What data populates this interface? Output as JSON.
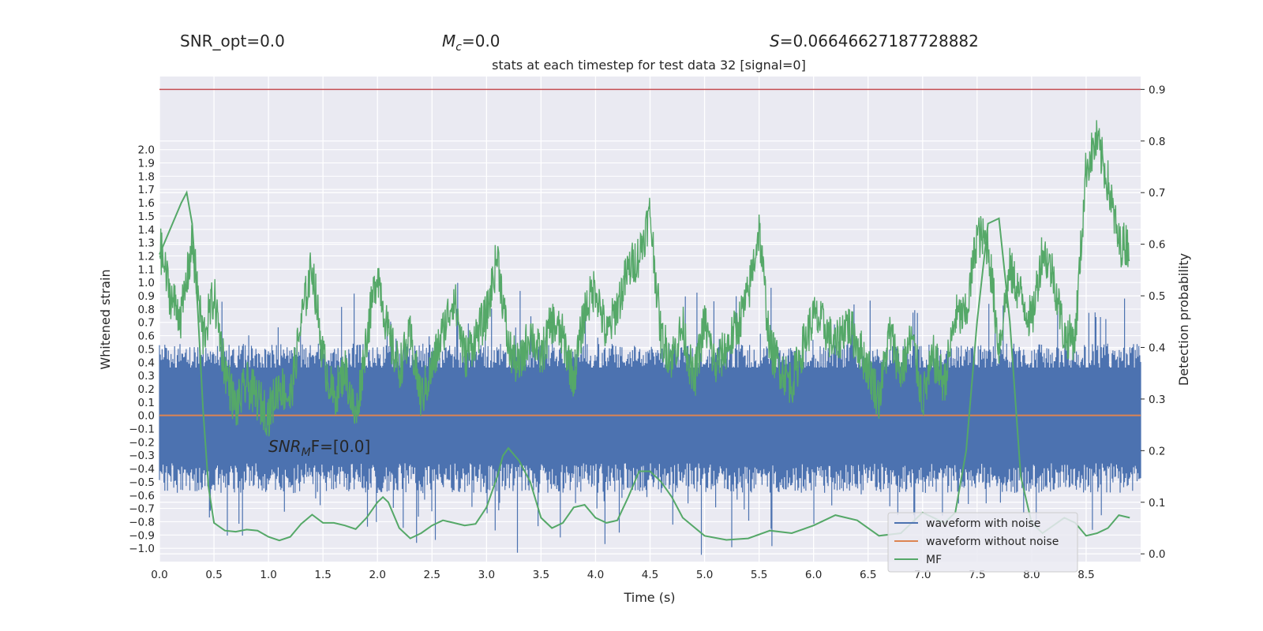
{
  "header": {
    "snr_opt_label": "SNR_opt=0.0",
    "mc_label": "=0.0",
    "mc_symbol": "M",
    "mc_sub": "c",
    "s_label": "=0.06646627187728882",
    "s_symbol": "S"
  },
  "chart_data": {
    "type": "line",
    "title": "stats at each timestep for test data 32 [signal=0]",
    "xlabel": "Time (s)",
    "ylabel_left": "Whitened strain",
    "ylabel_right": "Detection probability",
    "xlim": [
      0.0,
      9.0
    ],
    "ylim_left": [
      -1.1,
      2.55
    ],
    "ylim_right": [
      -0.015,
      0.925
    ],
    "x_ticks": [
      "0.0",
      "0.5",
      "1.0",
      "1.5",
      "2.0",
      "2.5",
      "3.0",
      "3.5",
      "4.0",
      "4.5",
      "5.0",
      "5.5",
      "6.0",
      "6.5",
      "7.0",
      "7.5",
      "8.0",
      "8.5"
    ],
    "y_left_ticks": [
      "-1.0",
      "-0.9",
      "-0.8",
      "-0.7",
      "-0.6",
      "-0.5",
      "-0.4",
      "-0.3",
      "-0.2",
      "-0.1",
      "0.0",
      "0.1",
      "0.2",
      "0.3",
      "0.4",
      "0.5",
      "0.6",
      "0.7",
      "0.8",
      "0.9",
      "1.0",
      "1.1",
      "1.2",
      "1.3",
      "1.4",
      "1.5",
      "1.6",
      "1.7",
      "1.8",
      "1.9",
      "2.0"
    ],
    "y_right_ticks": [
      "0.0",
      "0.1",
      "0.2",
      "0.3",
      "0.4",
      "0.5",
      "0.6",
      "0.7",
      "0.8",
      "0.9"
    ],
    "threshold": {
      "value": 0.9,
      "color": "#c44e52"
    },
    "annotation": {
      "prefix": "SNR",
      "sub": "M",
      "suffix": "F=[0.0]",
      "x": 1.0,
      "y": -0.05
    },
    "legend": {
      "placement": "lower-right",
      "entries": [
        "waveform with noise",
        "waveform without noise",
        "MF"
      ]
    },
    "series": [
      {
        "name": "waveform with noise",
        "axis": "left",
        "color": "#4c72b0",
        "style": "noise",
        "envelope_typical": 0.45,
        "envelope_max": 0.93,
        "envelope_min": -0.95
      },
      {
        "name": "waveform without noise",
        "axis": "left",
        "color": "#dd8452",
        "x": [
          0.0,
          9.0
        ],
        "y": [
          0.0,
          0.0
        ]
      },
      {
        "name": "MF",
        "axis": "right",
        "color": "#55a868",
        "x": [
          0.0,
          0.1,
          0.2,
          0.25,
          0.3,
          0.35,
          0.4,
          0.45,
          0.5,
          0.6,
          0.7,
          0.8,
          0.9,
          1.0,
          1.1,
          1.2,
          1.3,
          1.4,
          1.5,
          1.6,
          1.7,
          1.8,
          1.9,
          2.0,
          2.05,
          2.1,
          2.2,
          2.3,
          2.4,
          2.5,
          2.6,
          2.7,
          2.8,
          2.9,
          3.0,
          3.1,
          3.15,
          3.2,
          3.3,
          3.4,
          3.5,
          3.6,
          3.7,
          3.8,
          3.9,
          4.0,
          4.1,
          4.2,
          4.3,
          4.4,
          4.5,
          4.6,
          4.7,
          4.8,
          5.0,
          5.2,
          5.4,
          5.6,
          5.8,
          6.0,
          6.2,
          6.4,
          6.6,
          6.8,
          7.0,
          7.2,
          7.3,
          7.4,
          7.5,
          7.6,
          7.7,
          7.8,
          7.9,
          8.0,
          8.1,
          8.2,
          8.3,
          8.4,
          8.5,
          8.6,
          8.7,
          8.8,
          8.9
        ],
        "y": [
          0.58,
          0.63,
          0.68,
          0.7,
          0.64,
          0.48,
          0.28,
          0.13,
          0.06,
          0.045,
          0.043,
          0.047,
          0.045,
          0.033,
          0.026,
          0.033,
          0.058,
          0.076,
          0.06,
          0.06,
          0.055,
          0.048,
          0.07,
          0.1,
          0.11,
          0.1,
          0.05,
          0.03,
          0.04,
          0.055,
          0.065,
          0.06,
          0.055,
          0.058,
          0.09,
          0.15,
          0.19,
          0.205,
          0.18,
          0.14,
          0.07,
          0.05,
          0.06,
          0.09,
          0.095,
          0.07,
          0.06,
          0.065,
          0.11,
          0.16,
          0.16,
          0.14,
          0.11,
          0.07,
          0.035,
          0.027,
          0.03,
          0.045,
          0.04,
          0.055,
          0.075,
          0.065,
          0.035,
          0.04,
          0.08,
          0.06,
          0.08,
          0.2,
          0.45,
          0.64,
          0.65,
          0.45,
          0.15,
          0.06,
          0.04,
          0.055,
          0.07,
          0.06,
          0.035,
          0.04,
          0.05,
          0.075,
          0.07
        ]
      },
      {
        "name": "",
        "axis": "right",
        "color": "#55a868",
        "style": "noisy-probability",
        "x": [
          0.0,
          0.1,
          0.2,
          0.3,
          0.4,
          0.5,
          0.6,
          0.7,
          0.8,
          0.9,
          1.0,
          1.1,
          1.2,
          1.3,
          1.4,
          1.5,
          1.6,
          1.7,
          1.8,
          1.9,
          2.0,
          2.1,
          2.2,
          2.3,
          2.4,
          2.5,
          2.6,
          2.7,
          2.8,
          2.9,
          3.0,
          3.1,
          3.2,
          3.3,
          3.4,
          3.5,
          3.6,
          3.7,
          3.8,
          3.9,
          4.0,
          4.1,
          4.2,
          4.3,
          4.4,
          4.5,
          4.6,
          4.7,
          4.8,
          4.9,
          5.0,
          5.1,
          5.2,
          5.3,
          5.4,
          5.5,
          5.6,
          5.7,
          5.8,
          5.9,
          6.0,
          6.1,
          6.2,
          6.3,
          6.4,
          6.5,
          6.6,
          6.7,
          6.8,
          6.9,
          7.0,
          7.1,
          7.2,
          7.3,
          7.4,
          7.5,
          7.6,
          7.7,
          7.8,
          7.9,
          8.0,
          8.1,
          8.2,
          8.3,
          8.4,
          8.5,
          8.6,
          8.7,
          8.8,
          8.9
        ],
        "y": [
          0.6,
          0.5,
          0.46,
          0.6,
          0.42,
          0.5,
          0.36,
          0.28,
          0.33,
          0.3,
          0.27,
          0.33,
          0.3,
          0.45,
          0.56,
          0.38,
          0.3,
          0.36,
          0.26,
          0.42,
          0.55,
          0.42,
          0.36,
          0.42,
          0.3,
          0.36,
          0.43,
          0.5,
          0.38,
          0.42,
          0.46,
          0.58,
          0.4,
          0.36,
          0.43,
          0.38,
          0.45,
          0.42,
          0.34,
          0.47,
          0.52,
          0.42,
          0.48,
          0.55,
          0.58,
          0.66,
          0.42,
          0.38,
          0.44,
          0.33,
          0.45,
          0.36,
          0.4,
          0.44,
          0.5,
          0.63,
          0.4,
          0.36,
          0.33,
          0.4,
          0.46,
          0.44,
          0.4,
          0.45,
          0.41,
          0.36,
          0.3,
          0.43,
          0.35,
          0.42,
          0.3,
          0.38,
          0.33,
          0.46,
          0.46,
          0.62,
          0.6,
          0.4,
          0.55,
          0.5,
          0.45,
          0.59,
          0.54,
          0.42,
          0.42,
          0.75,
          0.8,
          0.72,
          0.6,
          0.6
        ]
      }
    ]
  }
}
